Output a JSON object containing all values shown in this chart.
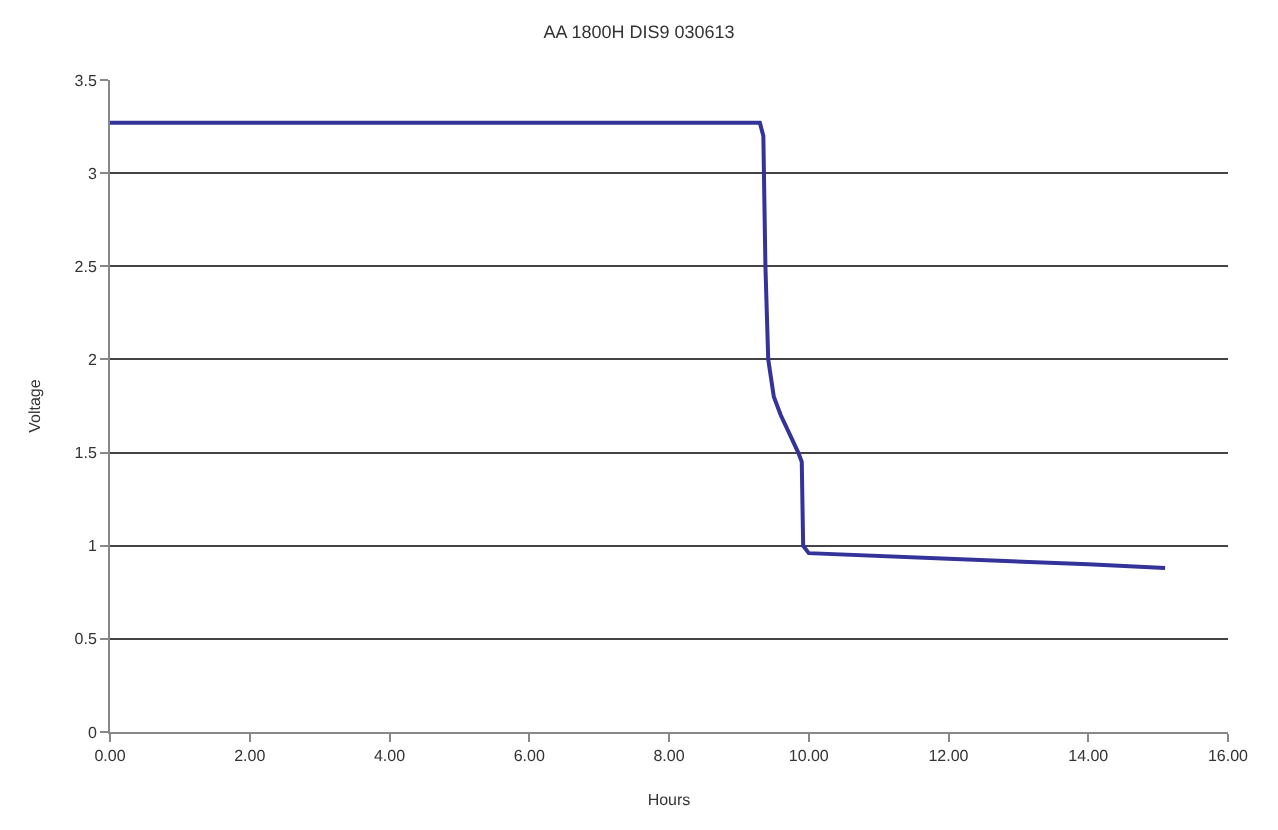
{
  "chart_data": {
    "type": "line",
    "title": "AA 1800H DIS9 030613",
    "xlabel": "Hours",
    "ylabel": "Voltage",
    "x": [
      0,
      9.3,
      9.35,
      9.38,
      9.42,
      9.5,
      9.6,
      9.7,
      9.85,
      9.9,
      9.92,
      10.0,
      12.0,
      14.0,
      15.1
    ],
    "series": [
      {
        "color": "#333399",
        "values": [
          3.27,
          3.27,
          3.2,
          2.5,
          2.0,
          1.8,
          1.7,
          1.62,
          1.5,
          1.45,
          1.0,
          0.96,
          0.93,
          0.9,
          0.88
        ]
      }
    ],
    "xlim": [
      0,
      16
    ],
    "xticks": [
      {
        "value": 0,
        "label": "0.00"
      },
      {
        "value": 2,
        "label": "2.00"
      },
      {
        "value": 4,
        "label": "4.00"
      },
      {
        "value": 6,
        "label": "6.00"
      },
      {
        "value": 8,
        "label": "8.00"
      },
      {
        "value": 10,
        "label": "10.00"
      },
      {
        "value": 12,
        "label": "12.00"
      },
      {
        "value": 14,
        "label": "14.00"
      },
      {
        "value": 16,
        "label": "16.00"
      }
    ],
    "ylim": [
      0,
      3.5
    ],
    "yticks": [
      0,
      0.5,
      1,
      1.5,
      2,
      2.5,
      3,
      3.5
    ],
    "grid": "y",
    "marker": "none",
    "line_style": "solid"
  }
}
